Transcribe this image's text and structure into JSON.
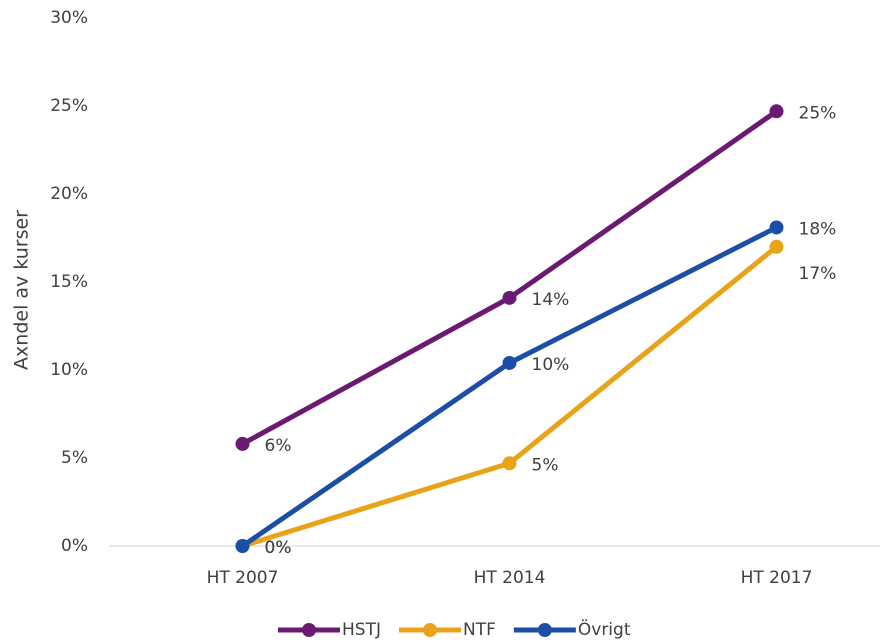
{
  "chart_data": {
    "type": "line",
    "y_label": "Axndel av kurser",
    "categories": [
      "HT 2007",
      "HT 2014",
      "HT 2017"
    ],
    "series": [
      {
        "name": "HSTJ",
        "color": "#6b1a72",
        "values": [
          5.8,
          14.1,
          24.7
        ],
        "value_labels": [
          "6%",
          "14%",
          "25%"
        ]
      },
      {
        "name": "NTF",
        "color": "#e8a318",
        "values": [
          0,
          4.7,
          17.0
        ],
        "value_labels": [
          "0%",
          "5%",
          "17%"
        ]
      },
      {
        "name": "Övrigt",
        "color": "#1d4ea6",
        "values": [
          0,
          10.4,
          18.1
        ],
        "value_labels": [
          "0%",
          "10%",
          "18%"
        ]
      }
    ],
    "ylim": [
      0,
      30
    ],
    "yticks": [
      {
        "value": 0,
        "label": "0%"
      },
      {
        "value": 5,
        "label": "5%"
      },
      {
        "value": 10,
        "label": "10%"
      },
      {
        "value": 15,
        "label": "15%"
      },
      {
        "value": 20,
        "label": "20%"
      },
      {
        "value": 25,
        "label": "25%"
      },
      {
        "value": 30,
        "label": "30%"
      }
    ],
    "legend": "bottom"
  }
}
